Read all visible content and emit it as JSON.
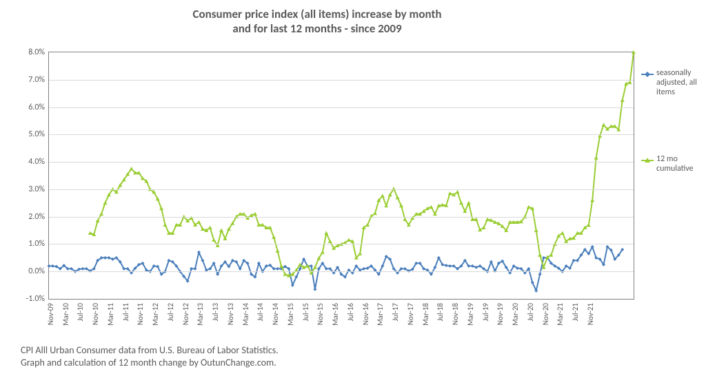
{
  "chart": {
    "type": "line",
    "title_line1": "Consumer price index (all items) increase by month",
    "title_line2": "and for last 12 months - since 2009",
    "title_fontsize": 17,
    "footer_line1": "CPI Alll Urban Consumer data from U.S. Bureau of Labor Statistics.",
    "footer_line2": "Graph and calculation of 12 month change by OutunChange.com.",
    "background_color": "#ffffff",
    "grid_color": "#d9d9d9",
    "border_color": "#808080",
    "text_color": "#595959",
    "y_axis": {
      "min": -1.0,
      "max": 8.0,
      "step": 1.0,
      "format_suffix": "%",
      "decimals": 1,
      "label_fontsize": 12
    },
    "x_axis": {
      "label_rotation_deg": -90,
      "label_fontsize": 11,
      "labels": [
        "Nov-09",
        "Mar-10",
        "Jul-10",
        "Nov-10",
        "Mar-11",
        "Jul-11",
        "Nov-11",
        "Mar-12",
        "Jul-12",
        "Nov-12",
        "Mar-13",
        "Jul-13",
        "Nov-13",
        "Mar-14",
        "Jul-14",
        "Nov-14",
        "Mar-15",
        "Jul-15",
        "Nov-15",
        "Mar-16",
        "Jul-16",
        "Nov-16",
        "Mar-17",
        "Jul-17",
        "Nov-17",
        "Mar-18",
        "Jul-18",
        "Nov-18",
        "Mar-19",
        "Jul-19",
        "Nov-19",
        "Mar-20",
        "Jul-20",
        "Nov-20",
        "Mar-21",
        "Jul-21",
        "Nov-21"
      ]
    },
    "series": [
      {
        "name": "seasonally adjusted, all items",
        "legend_label": "seasonally\nadjusted, all\nitems",
        "color": "#4a7ebb",
        "line_width": 2,
        "marker": "diamond",
        "marker_size": 5,
        "values": [
          0.2,
          0.2,
          0.18,
          0.1,
          0.22,
          0.1,
          0.1,
          0.0,
          0.08,
          0.1,
          0.1,
          0.02,
          0.1,
          0.4,
          0.5,
          0.5,
          0.5,
          0.45,
          0.5,
          0.35,
          0.1,
          0.1,
          -0.05,
          0.12,
          0.25,
          0.3,
          0.05,
          0.0,
          0.2,
          0.18,
          -0.1,
          0.0,
          0.4,
          0.35,
          0.2,
          0.0,
          -0.18,
          -0.35,
          0.1,
          0.1,
          0.7,
          0.4,
          0.05,
          0.1,
          0.3,
          -0.1,
          0.2,
          0.35,
          0.18,
          0.4,
          0.35,
          0.1,
          0.4,
          0.3,
          -0.1,
          -0.2,
          0.3,
          0.0,
          0.2,
          0.23,
          0.1,
          0.1,
          0.1,
          0.18,
          0.1,
          -0.5,
          -0.2,
          0.1,
          0.45,
          0.2,
          0.2,
          -0.65,
          0.1,
          0.3,
          0.1,
          0.1,
          -0.05,
          0.15,
          -0.1,
          -0.2,
          0.05,
          -0.05,
          0.2,
          0.05,
          0.1,
          0.12,
          0.2,
          0.05,
          -0.1,
          0.2,
          0.55,
          0.45,
          0.1,
          -0.05,
          0.1,
          0.1,
          0.02,
          0.08,
          0.3,
          0.3,
          0.1,
          0.05,
          -0.1,
          0.15,
          0.5,
          0.25,
          0.22,
          0.2,
          0.2,
          0.1,
          0.2,
          0.4,
          0.2,
          0.2,
          0.15,
          0.2,
          0.1,
          0.0,
          0.35,
          0.02,
          0.3,
          0.38,
          0.15,
          -0.05,
          0.2,
          0.12,
          0.1,
          -0.05,
          0.1,
          -0.4,
          -0.7,
          -0.1,
          0.5,
          0.5,
          0.3,
          0.2,
          0.12,
          0.0,
          0.2,
          0.12,
          0.4,
          0.4,
          0.6,
          0.8,
          0.65,
          0.9,
          0.5,
          0.45,
          0.25,
          0.9,
          0.78,
          0.45,
          0.6,
          0.8
        ]
      },
      {
        "name": "12 mo cumulative",
        "legend_label": "12 mo\ncumulative",
        "color": "#9acd32",
        "line_width": 2,
        "marker": "triangle",
        "marker_size": 6,
        "values": [
          null,
          null,
          null,
          null,
          null,
          null,
          null,
          null,
          null,
          null,
          null,
          1.4,
          1.35,
          1.85,
          2.1,
          2.5,
          2.8,
          3.0,
          2.9,
          3.15,
          3.35,
          3.55,
          3.75,
          3.6,
          3.6,
          3.4,
          3.3,
          3.0,
          2.9,
          2.65,
          2.3,
          1.7,
          1.4,
          1.4,
          1.7,
          1.7,
          2.0,
          1.85,
          1.95,
          1.7,
          1.8,
          1.55,
          1.5,
          1.6,
          1.15,
          0.95,
          1.5,
          1.2,
          1.55,
          1.76,
          2.0,
          2.1,
          2.1,
          1.95,
          2.05,
          2.1,
          1.7,
          1.7,
          1.6,
          1.6,
          1.25,
          0.75,
          0.2,
          -0.1,
          -0.15,
          -0.1,
          0.05,
          0.25,
          0.15,
          0.2,
          -0.05,
          0.15,
          0.48,
          0.7,
          1.4,
          1.1,
          0.85,
          0.95,
          1.0,
          1.05,
          1.15,
          1.1,
          0.5,
          0.65,
          1.6,
          1.7,
          2.02,
          2.12,
          2.6,
          2.76,
          2.4,
          2.8,
          3.02,
          2.7,
          2.4,
          1.9,
          1.7,
          1.95,
          2.1,
          2.1,
          2.2,
          2.3,
          2.35,
          2.1,
          2.4,
          2.43,
          2.41,
          2.85,
          2.8,
          2.9,
          2.5,
          2.2,
          2.5,
          1.9,
          1.9,
          1.52,
          1.6,
          1.9,
          1.87,
          1.8,
          1.75,
          1.65,
          1.5,
          1.8,
          1.8,
          1.8,
          1.82,
          2.0,
          2.35,
          2.3,
          1.5,
          0.6,
          0.15,
          0.52,
          0.6,
          1.0,
          1.3,
          1.4,
          1.1,
          1.2,
          1.22,
          1.4,
          1.4,
          1.6,
          1.69,
          2.6,
          4.15,
          4.95,
          5.35,
          5.2,
          5.3,
          5.3,
          5.18,
          6.25,
          6.85,
          6.9,
          8.0
        ]
      }
    ],
    "legend": {
      "position": "right",
      "fontsize": 12
    }
  }
}
